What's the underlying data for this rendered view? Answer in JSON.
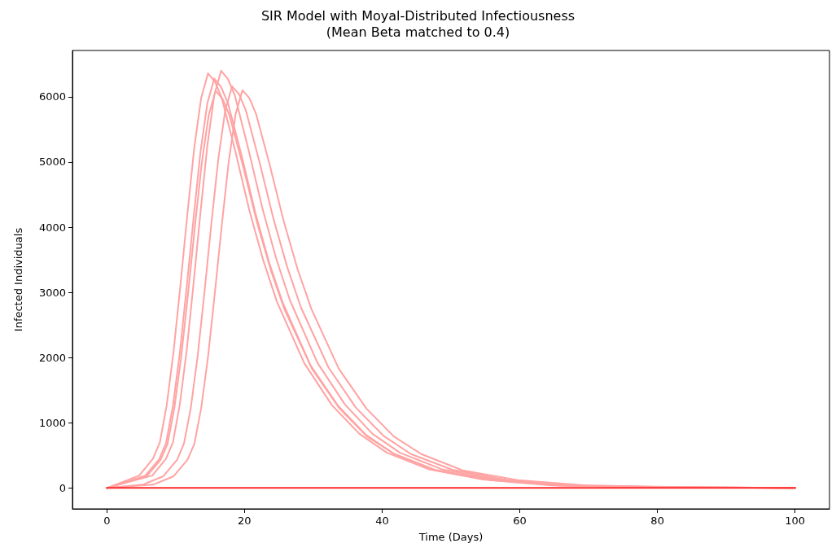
{
  "chart_data": {
    "type": "line",
    "title": "SIR Model with Moyal-Distributed Infectiousness",
    "subtitle": "(Mean Beta matched to 0.4)",
    "xlabel": "Time (Days)",
    "ylabel": "Infected Individuals",
    "xlim": [
      -5,
      105
    ],
    "xticks": [
      0,
      20,
      40,
      60,
      80,
      100
    ],
    "ylim": [
      -320,
      6710
    ],
    "yticks": [
      0,
      1000,
      2000,
      3000,
      4000,
      5000,
      6000
    ],
    "grid": false,
    "marker": "none",
    "line_style": "solid",
    "series": [
      {
        "color": "#ffa3a3",
        "x": [
          0,
          4.7,
          6.7,
          7.7,
          8.7,
          9.7,
          10.7,
          11.7,
          12.7,
          13.7,
          14.7,
          15.7,
          16.7,
          18.7,
          20.7,
          22.7,
          24.7,
          28.7,
          32.7,
          36.7,
          40.7,
          46.7,
          54.7,
          64.7,
          79.7,
          100
        ],
        "values": [
          0,
          190,
          450,
          700,
          1270,
          2100,
          3120,
          4200,
          5220,
          5980,
          6360,
          6230,
          5980,
          5150,
          4260,
          3500,
          2860,
          1910,
          1270,
          830,
          540,
          290,
          130,
          40,
          10,
          0
        ]
      },
      {
        "color": "#ffa3a3",
        "x": [
          0,
          5.6,
          7.6,
          8.6,
          9.6,
          10.6,
          11.6,
          12.6,
          13.6,
          14.6,
          15.6,
          16.6,
          17.6,
          19.6,
          21.6,
          23.6,
          25.6,
          29.6,
          33.6,
          37.6,
          41.6,
          47.6,
          55.6,
          65.6,
          80.6,
          100
        ],
        "values": [
          0,
          190,
          440,
          690,
          1260,
          2070,
          3080,
          4140,
          5150,
          5900,
          6280,
          6150,
          5900,
          5090,
          4210,
          3450,
          2830,
          1880,
          1260,
          820,
          530,
          280,
          130,
          40,
          10,
          0
        ]
      },
      {
        "color": "#ffa3a3",
        "x": [
          0,
          5.8,
          7.8,
          8.8,
          9.8,
          10.8,
          11.8,
          12.8,
          13.8,
          14.8,
          15.8,
          16.8,
          17.8,
          19.8,
          21.8,
          23.8,
          25.8,
          29.8,
          33.8,
          37.8,
          41.8,
          47.8,
          55.8,
          65.8,
          80.8,
          100
        ],
        "values": [
          0,
          180,
          430,
          670,
          1220,
          2010,
          2980,
          4020,
          4990,
          5720,
          6090,
          5970,
          5720,
          4930,
          4080,
          3350,
          2740,
          1830,
          1220,
          790,
          520,
          270,
          120,
          40,
          10,
          0
        ]
      },
      {
        "color": "#ffa3a3",
        "x": [
          0,
          6.6,
          8.6,
          9.6,
          10.6,
          11.6,
          12.6,
          13.6,
          14.6,
          15.6,
          16.6,
          17.6,
          18.6,
          20.6,
          22.6,
          24.6,
          26.6,
          30.6,
          34.6,
          38.6,
          42.6,
          48.6,
          56.6,
          66.6,
          81.6,
          100
        ],
        "values": [
          0,
          190,
          450,
          700,
          1280,
          2110,
          3140,
          4220,
          5250,
          6020,
          6400,
          6270,
          6020,
          5180,
          4290,
          3520,
          2880,
          1920,
          1280,
          830,
          540,
          290,
          130,
          40,
          10,
          0
        ]
      },
      {
        "color": "#ffa3a3",
        "x": [
          0,
          5.2,
          8.2,
          10.2,
          11.2,
          12.2,
          13.2,
          14.2,
          15.2,
          16.2,
          17.2,
          18.2,
          19.2,
          20.2,
          22.2,
          24.2,
          26.2,
          28.2,
          32.2,
          36.2,
          40.2,
          44.2,
          50.2,
          58.2,
          68.2,
          83.2,
          100
        ],
        "values": [
          0,
          50,
          180,
          430,
          680,
          1230,
          2030,
          3020,
          4070,
          5050,
          5790,
          6160,
          6040,
          5790,
          4990,
          4130,
          3390,
          2770,
          1850,
          1230,
          800,
          520,
          280,
          120,
          40,
          10,
          0
        ]
      },
      {
        "color": "#ffa3a3",
        "x": [
          0,
          6.7,
          9.7,
          11.7,
          12.7,
          13.7,
          14.7,
          15.7,
          16.7,
          17.7,
          18.7,
          19.7,
          20.7,
          21.7,
          23.7,
          25.7,
          27.7,
          29.7,
          33.7,
          37.7,
          41.7,
          45.7,
          51.7,
          59.7,
          69.7,
          84.7,
          100
        ],
        "values": [
          0,
          50,
          180,
          430,
          670,
          1220,
          2010,
          3000,
          4030,
          5000,
          5730,
          6100,
          5980,
          5730,
          4940,
          4090,
          3360,
          2750,
          1830,
          1220,
          790,
          520,
          270,
          120,
          40,
          10,
          0
        ]
      },
      {
        "color": "#ff2a2a",
        "x": [
          0,
          100
        ],
        "values": [
          0,
          0
        ]
      }
    ]
  }
}
